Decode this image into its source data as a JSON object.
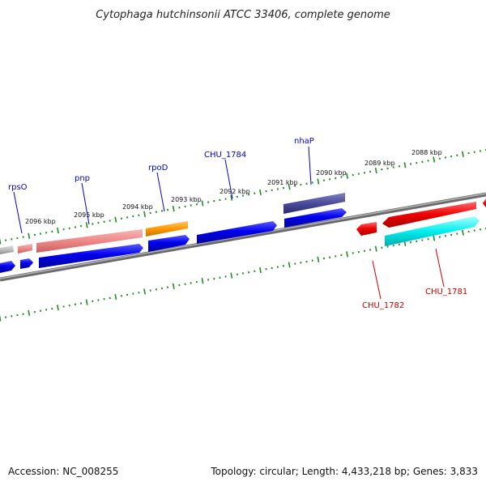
{
  "title": "Cytophaga hutchinsonii ATCC 33406, complete genome",
  "footer": {
    "accession": "Accession: NC_008255",
    "summary": "Topology: circular; Length: 4,433,218 bp; Genes: 3,833"
  },
  "colors": {
    "backbone": "#888888",
    "tick": "#228b22",
    "label_top": "#0000cc",
    "label_bottom": "#cc0000",
    "gene_blue": "#0000ee",
    "gene_pink": "#ee8888",
    "gene_orange": "#ff9900",
    "gene_navy": "#4b4b9b",
    "gene_red": "#ee0000",
    "gene_cyan": "#00eeee",
    "gene_grey": "#bbbbbb"
  },
  "kbp_labels": [
    "2088 kbp",
    "2089 kbp",
    "2090 kbp",
    "2091 kbp",
    "2092 kbp",
    "2093 kbp",
    "2094 kbp",
    "2095 kbp",
    "2096 kbp"
  ],
  "gene_labels": {
    "top": [
      "rpsO",
      "pnp",
      "rpoD",
      "CHU_1784",
      "nhaP"
    ],
    "bottom": [
      "CHU_1782",
      "CHU_1781"
    ]
  }
}
